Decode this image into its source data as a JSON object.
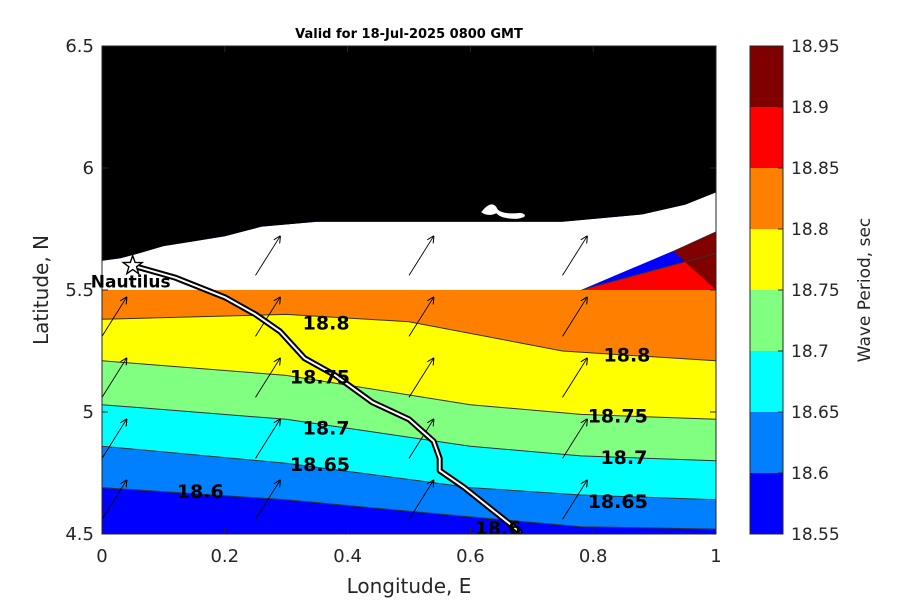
{
  "chart_data": {
    "type": "contour map",
    "title": "Valid for 18-Jul-2025 0800 GMT",
    "xlabel": "Longitude, E",
    "ylabel": "Latitude, N",
    "xlim": [
      0,
      1
    ],
    "ylim": [
      4.5,
      6.5
    ],
    "x_ticks": [
      "0",
      "0.2",
      "0.4",
      "0.6",
      "0.8",
      "1"
    ],
    "y_ticks": [
      "4.5",
      "5",
      "5.5",
      "6",
      "6.5"
    ],
    "land_color": "#000000",
    "mask_color": "#ffffff",
    "contours": [
      {
        "level": 18.6,
        "points": [
          [
            0.0,
            4.69
          ],
          [
            0.3,
            4.64
          ],
          [
            0.6,
            4.57
          ],
          [
            0.78,
            4.53
          ],
          [
            1.0,
            4.52
          ]
        ]
      },
      {
        "level": 18.65,
        "points": [
          [
            0.0,
            4.86
          ],
          [
            0.3,
            4.79
          ],
          [
            0.6,
            4.69
          ],
          [
            0.78,
            4.66
          ],
          [
            1.0,
            4.64
          ]
        ]
      },
      {
        "level": 18.7,
        "points": [
          [
            0.0,
            5.03
          ],
          [
            0.3,
            4.97
          ],
          [
            0.6,
            4.86
          ],
          [
            0.78,
            4.82
          ],
          [
            1.0,
            4.8
          ]
        ]
      },
      {
        "level": 18.75,
        "points": [
          [
            0.0,
            5.21
          ],
          [
            0.3,
            5.15
          ],
          [
            0.6,
            5.03
          ],
          [
            0.78,
            4.99
          ],
          [
            1.0,
            4.97
          ]
        ]
      },
      {
        "level": 18.8,
        "points": [
          [
            0.0,
            5.38
          ],
          [
            0.3,
            5.4
          ],
          [
            0.5,
            5.37
          ],
          [
            0.75,
            5.25
          ],
          [
            1.0,
            5.21
          ]
        ]
      },
      {
        "level": 18.85,
        "points": [
          [
            0.78,
            5.5
          ],
          [
            1.0,
            5.65
          ]
        ]
      },
      {
        "level": 18.9,
        "points": [
          [
            0.93,
            5.66
          ],
          [
            1.0,
            5.74
          ]
        ]
      }
    ],
    "contour_labels": [
      {
        "text": "18.8",
        "x": 0.365,
        "y": 5.36
      },
      {
        "text": "18.8",
        "x": 0.855,
        "y": 5.23
      },
      {
        "text": "18.75",
        "x": 0.355,
        "y": 5.14
      },
      {
        "text": "18.75",
        "x": 0.84,
        "y": 4.98
      },
      {
        "text": "18.7",
        "x": 0.365,
        "y": 4.93
      },
      {
        "text": "18.7",
        "x": 0.85,
        "y": 4.81
      },
      {
        "text": "18.65",
        "x": 0.355,
        "y": 4.78
      },
      {
        "text": "18.65",
        "x": 0.84,
        "y": 4.63
      },
      {
        "text": "18.6",
        "x": 0.16,
        "y": 4.67
      },
      {
        "text": "18.6",
        "x": 0.645,
        "y": 4.52
      }
    ],
    "track": {
      "points": [
        [
          0.05,
          5.6
        ],
        [
          0.12,
          5.55
        ],
        [
          0.2,
          5.47
        ],
        [
          0.25,
          5.4
        ],
        [
          0.29,
          5.33
        ],
        [
          0.33,
          5.22
        ],
        [
          0.38,
          5.15
        ],
        [
          0.44,
          5.04
        ],
        [
          0.5,
          4.97
        ],
        [
          0.54,
          4.88
        ],
        [
          0.55,
          4.81
        ],
        [
          0.55,
          4.76
        ],
        [
          0.59,
          4.69
        ],
        [
          0.63,
          4.61
        ],
        [
          0.68,
          4.51
        ]
      ]
    },
    "station": {
      "name": "Nautilus",
      "x": 0.05,
      "y": 5.6
    },
    "arrows": [
      {
        "x": 0.0,
        "y": 4.56,
        "dx": 0.04,
        "dy": 0.16
      },
      {
        "x": 0.0,
        "y": 4.81,
        "dx": 0.04,
        "dy": 0.16
      },
      {
        "x": 0.0,
        "y": 5.06,
        "dx": 0.04,
        "dy": 0.16
      },
      {
        "x": 0.0,
        "y": 5.31,
        "dx": 0.04,
        "dy": 0.16
      },
      {
        "x": 0.25,
        "y": 4.56,
        "dx": 0.04,
        "dy": 0.16
      },
      {
        "x": 0.25,
        "y": 4.81,
        "dx": 0.04,
        "dy": 0.16
      },
      {
        "x": 0.25,
        "y": 5.06,
        "dx": 0.04,
        "dy": 0.16
      },
      {
        "x": 0.25,
        "y": 5.31,
        "dx": 0.04,
        "dy": 0.16
      },
      {
        "x": 0.25,
        "y": 5.56,
        "dx": 0.04,
        "dy": 0.16
      },
      {
        "x": 0.5,
        "y": 4.56,
        "dx": 0.04,
        "dy": 0.16
      },
      {
        "x": 0.5,
        "y": 4.81,
        "dx": 0.04,
        "dy": 0.16
      },
      {
        "x": 0.5,
        "y": 5.06,
        "dx": 0.04,
        "dy": 0.16
      },
      {
        "x": 0.5,
        "y": 5.31,
        "dx": 0.04,
        "dy": 0.16
      },
      {
        "x": 0.5,
        "y": 5.56,
        "dx": 0.04,
        "dy": 0.16
      },
      {
        "x": 0.75,
        "y": 4.56,
        "dx": 0.04,
        "dy": 0.16
      },
      {
        "x": 0.75,
        "y": 4.81,
        "dx": 0.04,
        "dy": 0.16
      },
      {
        "x": 0.75,
        "y": 5.06,
        "dx": 0.04,
        "dy": 0.16
      },
      {
        "x": 0.75,
        "y": 5.31,
        "dx": 0.04,
        "dy": 0.16
      },
      {
        "x": 0.75,
        "y": 5.56,
        "dx": 0.04,
        "dy": 0.16
      }
    ],
    "colorbar": {
      "label": "Wave Period, sec",
      "ticks": [
        "18.55",
        "18.6",
        "18.65",
        "18.7",
        "18.75",
        "18.8",
        "18.85",
        "18.9",
        "18.95"
      ],
      "bands": [
        {
          "low": 18.55,
          "high": 18.6,
          "color": "#0000ff"
        },
        {
          "low": 18.6,
          "high": 18.65,
          "color": "#0080ff"
        },
        {
          "low": 18.65,
          "high": 18.7,
          "color": "#00ffff"
        },
        {
          "low": 18.7,
          "high": 18.75,
          "color": "#80ff80"
        },
        {
          "low": 18.75,
          "high": 18.8,
          "color": "#ffff00"
        },
        {
          "low": 18.8,
          "high": 18.85,
          "color": "#ff8000"
        },
        {
          "low": 18.85,
          "high": 18.9,
          "color": "#ff0000"
        },
        {
          "low": 18.9,
          "high": 18.95,
          "color": "#800000"
        }
      ]
    }
  }
}
